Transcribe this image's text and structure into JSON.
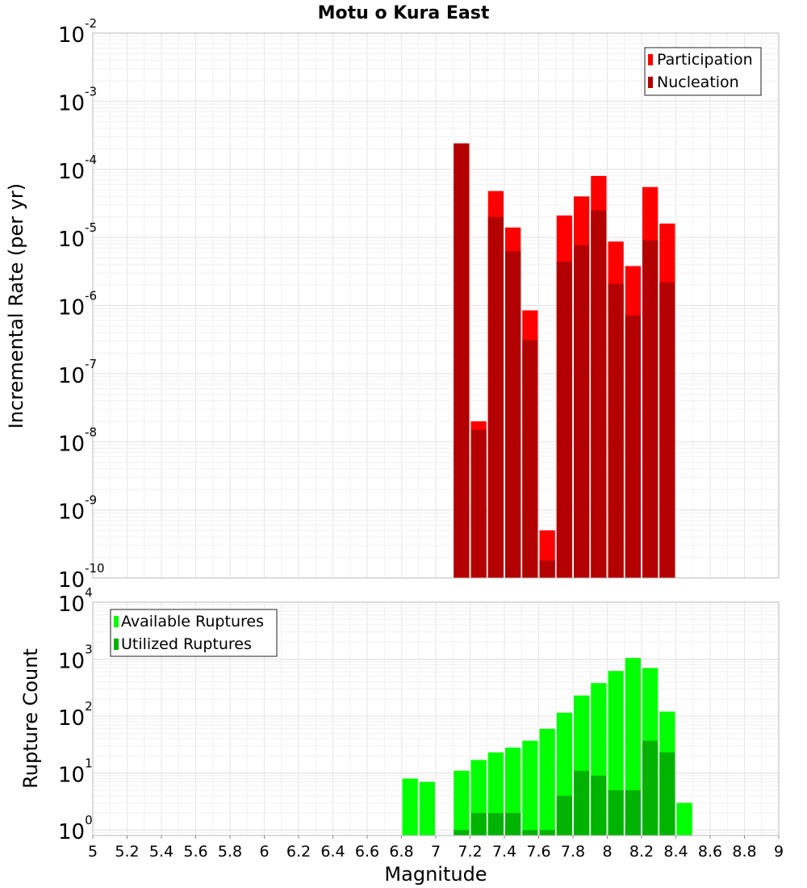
{
  "chart_data": [
    {
      "type": "bar",
      "title": "Motu o Kura East",
      "xlabel": "",
      "ylabel": "Incremental Rate (per yr)",
      "yscale": "log",
      "ylim": [
        1e-10,
        0.01
      ],
      "ytick_exponents": [
        "-2",
        "-3",
        "-4",
        "-5",
        "-6",
        "-7",
        "-8",
        "-9",
        "-10"
      ],
      "xlim": [
        5,
        9
      ],
      "grid": true,
      "legend_position": "top-right",
      "colors": {
        "Participation": "#ff0000",
        "Nucleation": "#b30000"
      },
      "x": [
        7.15,
        7.25,
        7.35,
        7.45,
        7.55,
        7.65,
        7.75,
        7.85,
        7.95,
        8.05,
        8.15,
        8.25,
        8.35
      ],
      "series": [
        {
          "name": "Participation",
          "values": [
            0.00024,
            2e-08,
            4.8e-05,
            1.4e-05,
            8.5e-07,
            5e-10,
            2.1e-05,
            4e-05,
            8e-05,
            8.7e-06,
            3.8e-06,
            5.5e-05,
            1.6e-05
          ]
        },
        {
          "name": "Nucleation",
          "values": [
            0.00024,
            1.5e-08,
            2e-05,
            6.3e-06,
            3.1e-07,
            1.8e-10,
            4.4e-06,
            7.7e-06,
            2.5e-05,
            2.1e-06,
            7.2e-07,
            9e-06,
            2.2e-06
          ]
        }
      ]
    },
    {
      "type": "bar",
      "title": "",
      "xlabel": "Magnitude",
      "ylabel": "Rupture Count",
      "yscale": "log",
      "ylim": [
        0.8,
        10000.0
      ],
      "ytick_exponents": [
        "0",
        "1",
        "2",
        "3",
        "4"
      ],
      "xlim": [
        5,
        9
      ],
      "xticks": [
        "5",
        "5.2",
        "5.4",
        "5.6",
        "5.8",
        "6",
        "6.2",
        "6.4",
        "6.6",
        "6.8",
        "7",
        "7.2",
        "7.4",
        "7.6",
        "7.8",
        "8",
        "8.2",
        "8.4",
        "8.6",
        "8.8",
        "9"
      ],
      "grid": true,
      "legend_position": "top-left",
      "colors": {
        "Available Ruptures": "#00ff00",
        "Utilized Ruptures": "#00b300"
      },
      "x": [
        6.85,
        6.95,
        7.15,
        7.25,
        7.35,
        7.45,
        7.55,
        7.65,
        7.75,
        7.85,
        7.95,
        8.05,
        8.15,
        8.25,
        8.35,
        8.45
      ],
      "series": [
        {
          "name": "Available Ruptures",
          "values": [
            8,
            7,
            11,
            17,
            23,
            28,
            37,
            60,
            115,
            230,
            380,
            620,
            1050,
            700,
            120,
            3
          ]
        },
        {
          "name": "Utilized Ruptures",
          "values": [
            0,
            0,
            1,
            2,
            2,
            2,
            1,
            1,
            4,
            11,
            9,
            5,
            5,
            37,
            23,
            0
          ]
        }
      ]
    }
  ]
}
